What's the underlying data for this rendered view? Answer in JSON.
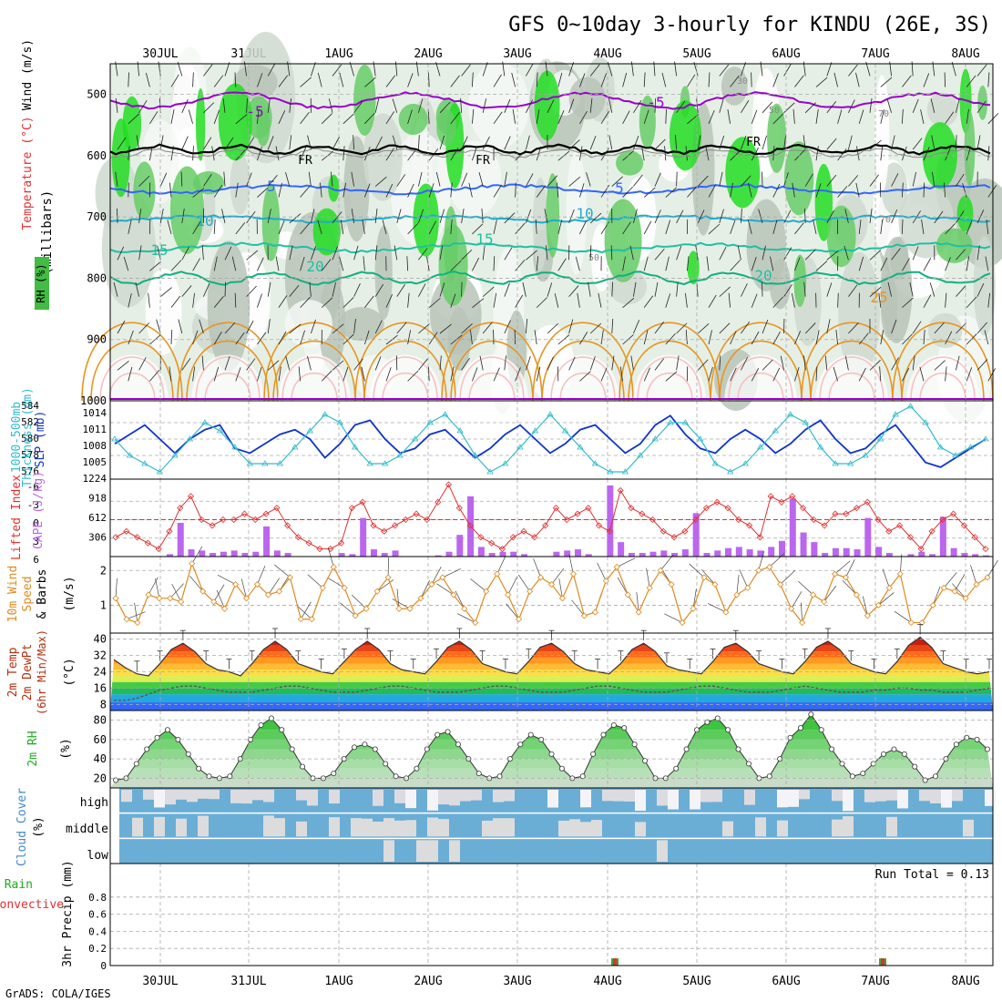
{
  "title": "GFS 0~10day 3-hourly for KINDU (26E, 3S)",
  "credit": "GrADS: COLA/IGES",
  "colors": {
    "rh_green": "#33cc33",
    "temp_purple": "#9900cc",
    "temp_blue": "#3366ff",
    "temp_cyan": "#22aacc",
    "temp_teal": "#20c0a0",
    "temp_orange": "#e69520",
    "temp_red": "#e03030",
    "slp_blue": "#1133cc",
    "thick_cyan": "#33bbcc",
    "cape_purple": "#bb66ee",
    "li_red": "#e03030",
    "wind_orange": "#e08a20",
    "cloud_blue": "#6aaed6",
    "cloud_white": "#f4f4f8"
  },
  "dates": [
    "30JUL",
    "31JUL",
    "1AUG",
    "2AUG",
    "3AUG",
    "4AUG",
    "5AUG",
    "6AUG",
    "7AUG",
    "8AUG"
  ],
  "panels": {
    "upper_air": {
      "labels": [
        "Wind (m/s)",
        "Temperature (°C)",
        "RH (%)"
      ],
      "axis_label": "(millibars)",
      "yticks": [
        "500",
        "600",
        "700",
        "800",
        "900",
        "1000"
      ],
      "contour_labels": {
        "temp": [
          "-5",
          "-5",
          "5",
          "5",
          "10",
          "10",
          "15",
          "15",
          "20",
          "20",
          "25"
        ],
        "freeze": [
          "FR",
          "FR",
          "FR"
        ],
        "rh": [
          "30",
          "50",
          "70",
          "50",
          "70"
        ]
      }
    },
    "slp": {
      "labels": [
        "1000-500mb",
        "Thickness (dm)",
        "SLP (mb)"
      ],
      "left_ticks": [
        "584",
        "582",
        "580",
        "578",
        "576"
      ],
      "right_ticks": [
        "1014",
        "1011",
        "1008",
        "1005"
      ]
    },
    "cape": {
      "labels": [
        "Lifted Index",
        "CAPE (J/kg)"
      ],
      "left_ticks": [
        "-6",
        "-3",
        "0",
        "3",
        "6"
      ],
      "right_ticks": [
        "1224",
        "918",
        "612",
        "306"
      ]
    },
    "wind10m": {
      "labels": [
        "10m Wind",
        "Speed",
        "& Barbs",
        "(m/s)"
      ],
      "yticks": [
        "2",
        "1"
      ]
    },
    "temp2m": {
      "labels": [
        "2m Temp",
        "2m DewPt",
        "(6hr Min/Max)",
        "(°C)"
      ],
      "yticks": [
        "40",
        "32",
        "24",
        "16",
        "8"
      ]
    },
    "rh2m": {
      "labels": [
        "2m RH",
        "(%)"
      ],
      "yticks": [
        "80",
        "60",
        "40",
        "20"
      ]
    },
    "cloud": {
      "labels": [
        "Cloud Cover",
        "(%)"
      ],
      "levels": [
        "high",
        "middle",
        "low"
      ]
    },
    "precip": {
      "labels": [
        "Total / Rain",
        "Convective",
        "3hr Precip (mm)"
      ],
      "yticks": [
        "0.8",
        "0.6",
        "0.4",
        "0.2",
        "0"
      ],
      "run_total": "Run Total = 0.13"
    }
  },
  "chart_data": [
    {
      "type": "line",
      "panel": "slp",
      "series": [
        {
          "name": "SLP (mb)",
          "values": [
            1008,
            1010,
            1012,
            1009,
            1006,
            1009,
            1011,
            1012,
            1007,
            1006,
            1008,
            1010,
            1011,
            1009,
            1005,
            1008,
            1012,
            1013,
            1009,
            1006,
            1007,
            1010,
            1011,
            1008,
            1005,
            1007,
            1010,
            1012,
            1009,
            1006,
            1008,
            1011,
            1012,
            1009,
            1006,
            1008,
            1012,
            1014,
            1010,
            1007,
            1006,
            1009,
            1011,
            1009,
            1006,
            1008,
            1011,
            1013,
            1009,
            1006,
            1007,
            1010,
            1012,
            1008,
            1004,
            1003,
            1005,
            1007,
            1009
          ]
        },
        {
          "name": "1000-500mb Thickness (dm)",
          "values": [
            580,
            578,
            577,
            576,
            578,
            580,
            582,
            581,
            579,
            577,
            577,
            577,
            579,
            581,
            583,
            582,
            579,
            577,
            577,
            578,
            580,
            582,
            583,
            581,
            578,
            576,
            577,
            579,
            581,
            583,
            581,
            579,
            577,
            576,
            576,
            578,
            580,
            582,
            582,
            580,
            577,
            576,
            577,
            579,
            581,
            583,
            582,
            579,
            577,
            577,
            578,
            580,
            583,
            584,
            582,
            579,
            578,
            579,
            580
          ]
        }
      ],
      "left_range": [
        576,
        584
      ],
      "right_range": [
        1002,
        1016
      ]
    },
    {
      "type": "bar",
      "panel": "cape",
      "series": [
        {
          "name": "CAPE (J/kg)",
          "values": [
            0,
            0,
            0,
            0,
            0,
            40,
            560,
            120,
            100,
            60,
            80,
            100,
            60,
            80,
            500,
            100,
            60,
            0,
            0,
            0,
            0,
            60,
            40,
            640,
            120,
            60,
            100,
            0,
            0,
            0,
            20,
            80,
            360,
            1000,
            160,
            60,
            80,
            80,
            40,
            0,
            0,
            80,
            100,
            120,
            40,
            0,
            1180,
            240,
            60,
            60,
            80,
            100,
            60,
            120,
            720,
            60,
            100,
            140,
            160,
            120,
            100,
            160,
            260,
            960,
            400,
            240,
            60,
            140,
            140,
            120,
            640,
            160,
            60,
            0,
            40,
            80,
            40,
            660,
            140,
            60,
            40,
            20
          ]
        },
        {
          "name": "Lifted Index",
          "values": [
            3,
            2,
            3,
            4,
            5,
            2,
            -2,
            -4,
            0,
            1,
            0,
            0,
            -1,
            0,
            -1,
            -2,
            1,
            3,
            4,
            5,
            5,
            4,
            -2,
            -3,
            1,
            2,
            1,
            0,
            -1,
            0,
            -3,
            -6,
            -2,
            1,
            3,
            4,
            5,
            3,
            2,
            3,
            1,
            -2,
            0,
            -1,
            -2,
            1,
            2,
            -5,
            -2,
            -1,
            0,
            2,
            3,
            2,
            0,
            -2,
            -3,
            -2,
            0,
            1,
            3,
            -4,
            -3,
            -4,
            -2,
            0,
            1,
            -1,
            -1,
            -2,
            -3,
            0,
            2,
            1,
            3,
            5,
            2,
            0,
            -1,
            1,
            3,
            5
          ]
        }
      ],
      "cape_range": [
        0,
        1224
      ],
      "li_range": [
        -6,
        6
      ]
    },
    {
      "type": "line",
      "panel": "wind10m",
      "series": [
        {
          "name": "10m Wind Speed (m/s)",
          "values": [
            1.2,
            0.6,
            0.5,
            1.3,
            1.2,
            1.2,
            1.1,
            2.2,
            1.4,
            1.1,
            0.9,
            1.6,
            1.2,
            1.6,
            1.3,
            1.4,
            1.8,
            0.6,
            0.6,
            1.5,
            2.1,
            1.5,
            0.7,
            0.9,
            1.4,
            1.8,
            0.9,
            0.9,
            1.2,
            1.6,
            1.8,
            1.3,
            0.9,
            0.5,
            1.4,
            1.9,
            1.3,
            0.6,
            1.4,
            1.8,
            1.6,
            1.2,
            1.9,
            0.7,
            0.8,
            1.7,
            2.1,
            1.3,
            0.8,
            1.5,
            2.0,
            1.6,
            0.5,
            0.9,
            1.8,
            1.6,
            0.8,
            1.3,
            1.5,
            2.0,
            2.1,
            1.6,
            0.9,
            0.5,
            1.3,
            1.1,
            1.9,
            1.8,
            1.3,
            0.7,
            1.0,
            1.5,
            1.9,
            0.5,
            0.5,
            1.0,
            1.5,
            1.4,
            1.2,
            1.6,
            1.8
          ]
        }
      ],
      "range": [
        0.2,
        2.4
      ]
    },
    {
      "type": "area",
      "panel": "temp2m",
      "series": [
        {
          "name": "2m Temp (°C)",
          "values": [
            30,
            26,
            23,
            22,
            28,
            35,
            38,
            34,
            28,
            25,
            24,
            22,
            28,
            35,
            39,
            35,
            28,
            26,
            24,
            23,
            29,
            35,
            39,
            35,
            28,
            25,
            24,
            23,
            29,
            36,
            39,
            35,
            28,
            26,
            24,
            23,
            29,
            36,
            38,
            34,
            28,
            25,
            24,
            23,
            28,
            35,
            38,
            34,
            27,
            25,
            24,
            23,
            29,
            36,
            38,
            34,
            28,
            26,
            24,
            23,
            29,
            36,
            39,
            35,
            28,
            26,
            24,
            23,
            29,
            37,
            41,
            36,
            28,
            26,
            24,
            23,
            24
          ]
        },
        {
          "name": "2m DewPt (°C)",
          "values": [
            10,
            10,
            11,
            13,
            15,
            16,
            17,
            17,
            16,
            15,
            14,
            14,
            14,
            15,
            16,
            17,
            17,
            16,
            15,
            14,
            14,
            14,
            15,
            16,
            17,
            17,
            16,
            15,
            14,
            14,
            14,
            15,
            16,
            17,
            17,
            16,
            15,
            14,
            14,
            14,
            15,
            16,
            17,
            17,
            16,
            15,
            14,
            14,
            14,
            15,
            16,
            17,
            17,
            16,
            15,
            14,
            14,
            14,
            15,
            16,
            17,
            16,
            15,
            14,
            14,
            14,
            15,
            15,
            16,
            16,
            15,
            15,
            14,
            14,
            14,
            15,
            16
          ]
        }
      ],
      "range": [
        5,
        43
      ]
    },
    {
      "type": "area",
      "panel": "rh2m",
      "series": [
        {
          "name": "2m RH (%)",
          "values": [
            18,
            20,
            35,
            50,
            62,
            70,
            60,
            45,
            30,
            22,
            20,
            22,
            40,
            60,
            75,
            82,
            70,
            50,
            32,
            20,
            20,
            25,
            40,
            52,
            55,
            50,
            35,
            22,
            20,
            30,
            50,
            65,
            68,
            55,
            40,
            25,
            20,
            22,
            40,
            55,
            65,
            60,
            45,
            30,
            20,
            22,
            45,
            65,
            75,
            72,
            55,
            38,
            20,
            20,
            30,
            50,
            70,
            78,
            82,
            70,
            50,
            35,
            20,
            22,
            40,
            62,
            72,
            86,
            70,
            50,
            35,
            22,
            25,
            35,
            45,
            50,
            45,
            32,
            18,
            22,
            40,
            55,
            62,
            60,
            50
          ]
        }
      ],
      "range": [
        10,
        90
      ]
    },
    {
      "type": "bar",
      "panel": "precip",
      "series": [
        {
          "name": "3hr Precip (mm)",
          "values": [
            {
              "day": "4AUG",
              "value": 0.02
            },
            {
              "day": "7AUG",
              "value": 0.02
            }
          ]
        }
      ],
      "range": [
        0,
        1.0
      ]
    }
  ]
}
